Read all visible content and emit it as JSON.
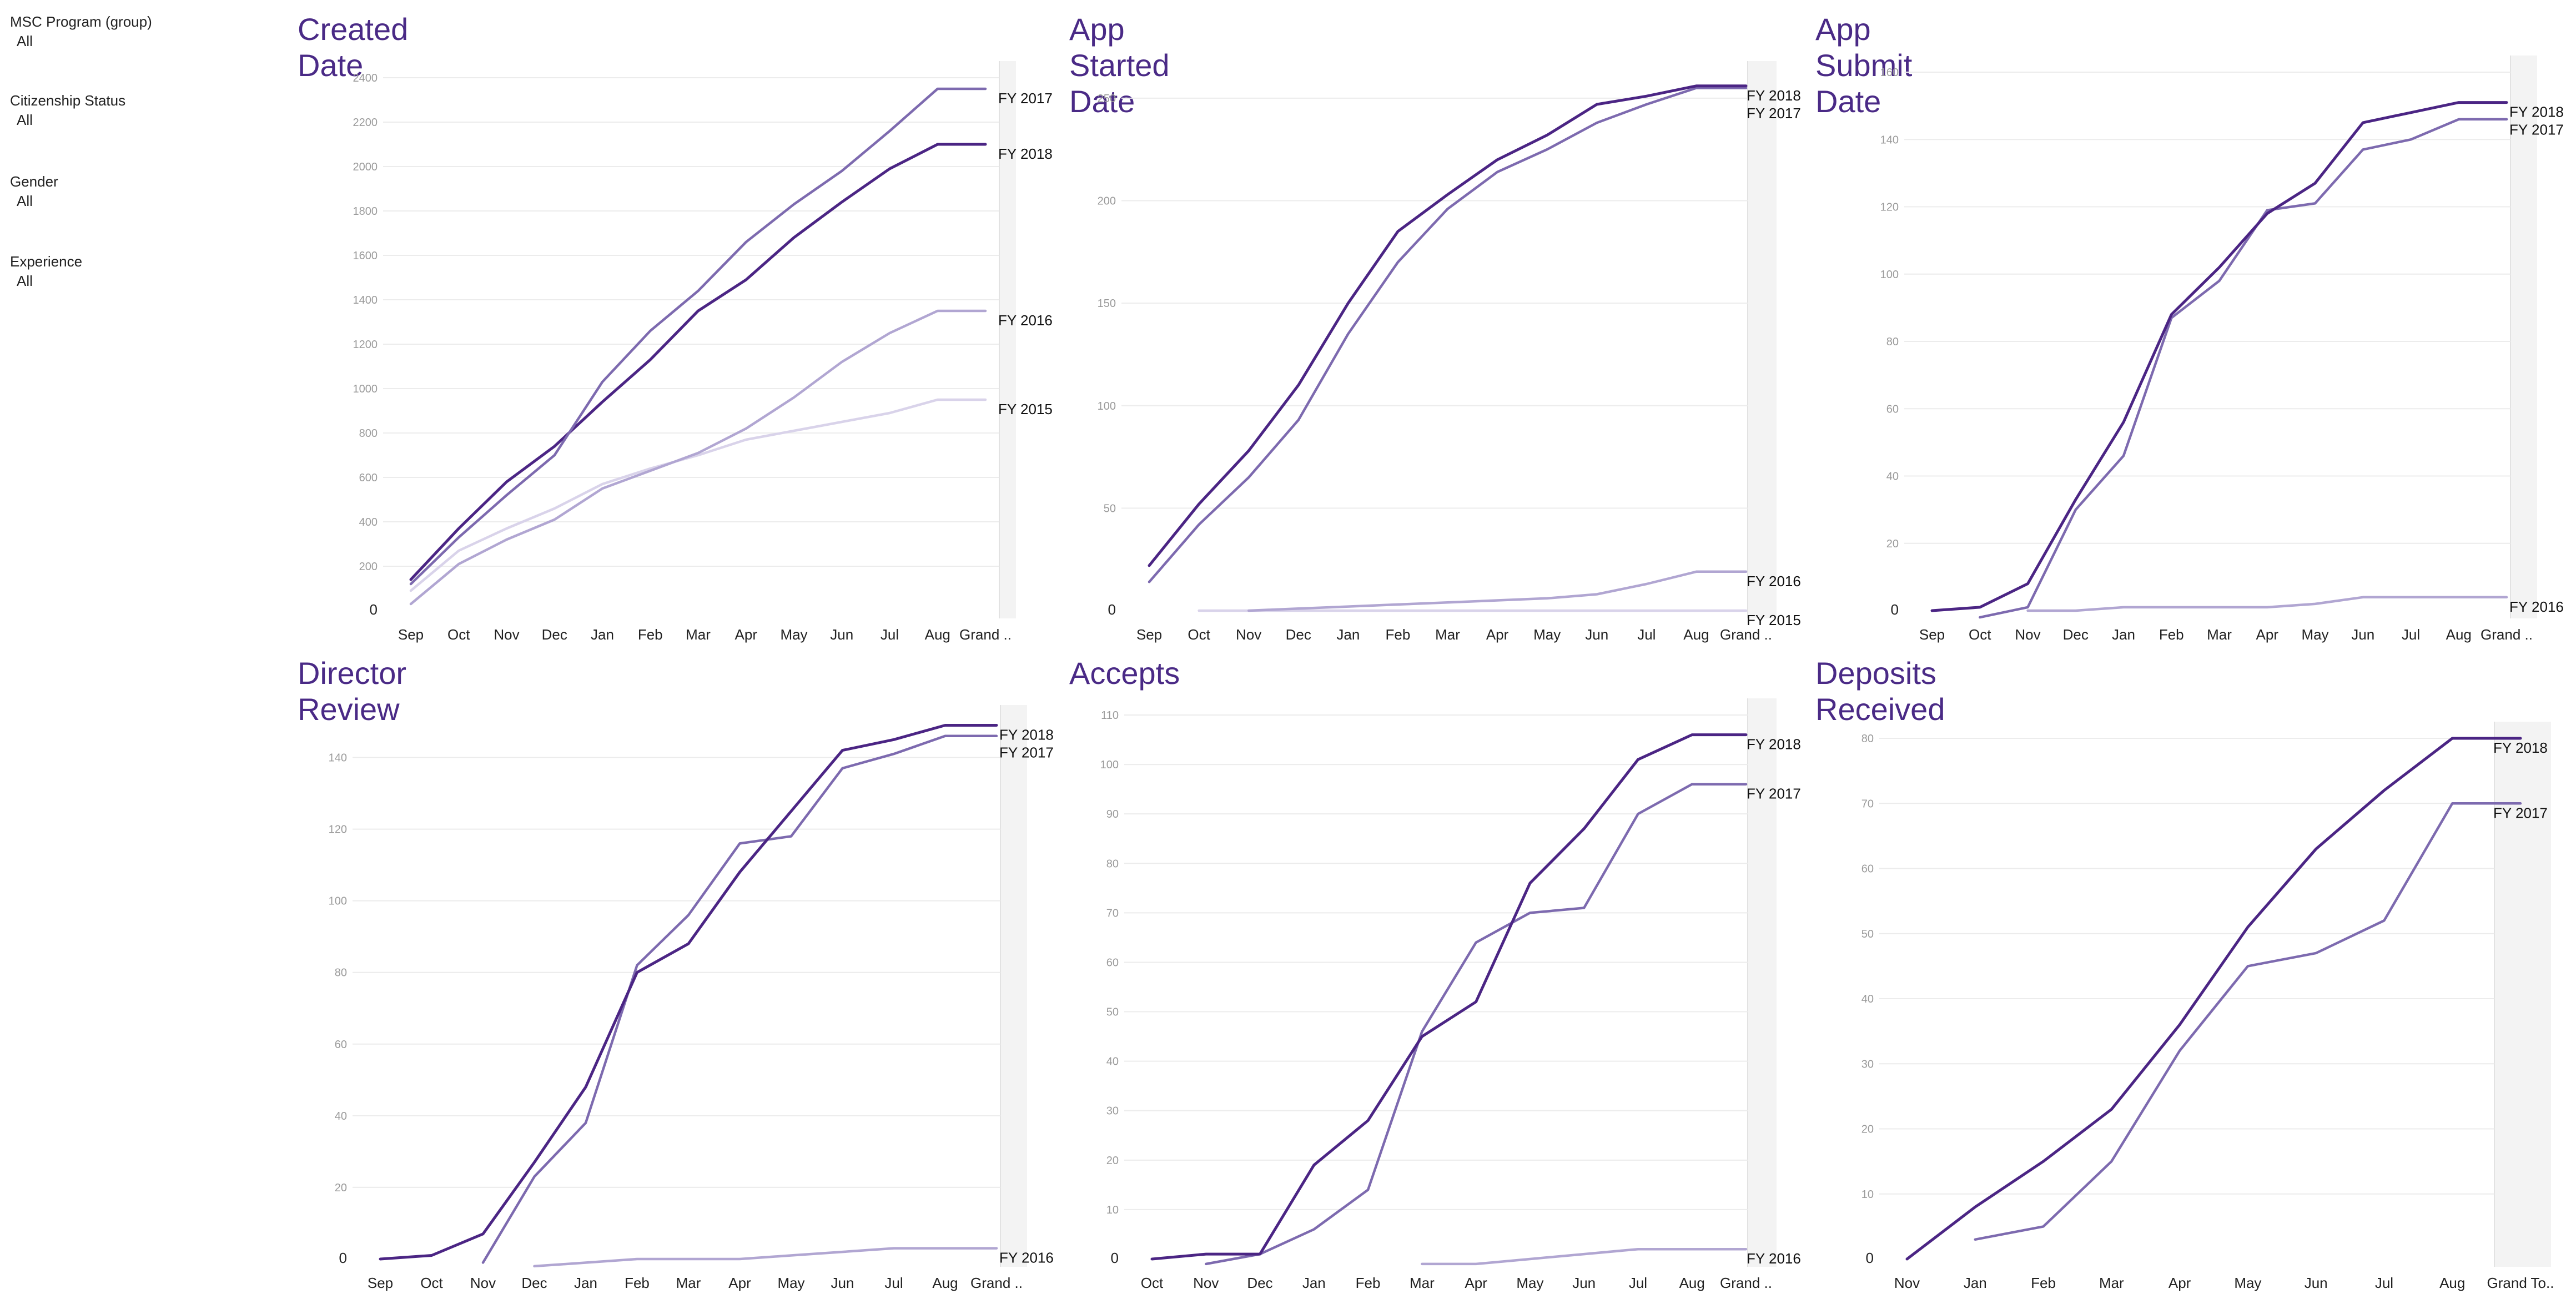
{
  "filters": [
    {
      "label": "MSC Program (group)",
      "value": "All"
    },
    {
      "label": "Citizenship Status",
      "value": "All"
    },
    {
      "label": "Gender",
      "value": "All"
    },
    {
      "label": "Experience",
      "value": "All"
    }
  ],
  "colors": {
    "title": "#4a2a86",
    "FY 2018": "#4b2584",
    "FY 2017": "#7d6aaf",
    "FY 2016": "#b1a6d2",
    "FY 2015": "#d9d3ea",
    "grand_band": "#f3f3f3",
    "grid": "#ececec"
  },
  "chart_data": [
    {
      "type": "line",
      "title": "Created Date",
      "categories": [
        "Sep",
        "Oct",
        "Nov",
        "Dec",
        "Jan",
        "Feb",
        "Mar",
        "Apr",
        "May",
        "Jun",
        "Jul",
        "Aug",
        "Grand .."
      ],
      "ylim": [
        0,
        2400
      ],
      "yticks": [
        0,
        200,
        400,
        600,
        800,
        1000,
        1200,
        1400,
        1600,
        1800,
        2000,
        2200,
        2400
      ],
      "series": [
        {
          "name": "FY 2017",
          "values": [
            120,
            330,
            520,
            700,
            1030,
            1260,
            1440,
            1660,
            1830,
            1980,
            2160,
            2350,
            2350
          ]
        },
        {
          "name": "FY 2018",
          "values": [
            140,
            370,
            580,
            740,
            940,
            1130,
            1350,
            1490,
            1680,
            1840,
            1990,
            2100,
            2100
          ]
        },
        {
          "name": "FY 2016",
          "values": [
            30,
            210,
            320,
            410,
            550,
            630,
            710,
            820,
            960,
            1120,
            1250,
            1350,
            1350
          ]
        },
        {
          "name": "FY 2015",
          "values": [
            90,
            270,
            370,
            460,
            570,
            640,
            700,
            770,
            810,
            850,
            890,
            950,
            950
          ]
        }
      ],
      "labels_order": [
        "FY 2017",
        "FY 2018",
        "FY 2016",
        "FY 2015"
      ]
    },
    {
      "type": "line",
      "title": "App Started Date",
      "categories": [
        "Sep",
        "Oct",
        "Nov",
        "Dec",
        "Jan",
        "Feb",
        "Mar",
        "Apr",
        "May",
        "Jun",
        "Jul",
        "Aug",
        "Grand .."
      ],
      "ylim": [
        0,
        260
      ],
      "yticks": [
        0,
        50,
        100,
        150,
        200,
        250
      ],
      "series": [
        {
          "name": "FY 2018",
          "values": [
            22,
            52,
            78,
            110,
            150,
            185,
            203,
            220,
            232,
            247,
            251,
            256,
            256
          ]
        },
        {
          "name": "FY 2017",
          "values": [
            14,
            42,
            65,
            93,
            135,
            170,
            196,
            214,
            225,
            238,
            247,
            255,
            255
          ]
        },
        {
          "name": "FY 2016",
          "values": [
            null,
            null,
            0,
            1,
            2,
            3,
            4,
            5,
            6,
            8,
            13,
            19,
            19
          ]
        },
        {
          "name": "FY 2015",
          "values": [
            null,
            0,
            0,
            0,
            0,
            0,
            0,
            0,
            0,
            0,
            0,
            0,
            0
          ]
        }
      ],
      "labels_order": [
        "FY 2018",
        "FY 2017",
        "FY 2016",
        "FY 2015"
      ]
    },
    {
      "type": "line",
      "title": "App Submit Date",
      "categories": [
        "Sep",
        "Oct",
        "Nov",
        "Dec",
        "Jan",
        "Feb",
        "Mar",
        "Apr",
        "May",
        "Jun",
        "Jul",
        "Aug",
        "Grand .."
      ],
      "ylim": [
        0,
        160
      ],
      "yticks": [
        0,
        20,
        40,
        60,
        80,
        100,
        120,
        140,
        160
      ],
      "series": [
        {
          "name": "FY 2018",
          "values": [
            0,
            1,
            8,
            33,
            56,
            88,
            102,
            118,
            127,
            145,
            148,
            151,
            151
          ]
        },
        {
          "name": "FY 2017",
          "values": [
            null,
            -2,
            1,
            30,
            46,
            87,
            98,
            119,
            121,
            137,
            140,
            146,
            146
          ]
        },
        {
          "name": "FY 2016",
          "values": [
            null,
            null,
            0,
            0,
            1,
            1,
            1,
            1,
            2,
            4,
            4,
            4,
            4
          ]
        }
      ],
      "labels_order": [
        "FY 2018",
        "FY 2017",
        "FY 2016"
      ]
    },
    {
      "type": "line",
      "title": "Director Review",
      "categories": [
        "Sep",
        "Oct",
        "Nov",
        "Dec",
        "Jan",
        "Feb",
        "Mar",
        "Apr",
        "May",
        "Jun",
        "Jul",
        "Aug",
        "Grand .."
      ],
      "ylim": [
        0,
        150
      ],
      "yticks": [
        0,
        20,
        40,
        60,
        80,
        100,
        120,
        140
      ],
      "series": [
        {
          "name": "FY 2018",
          "values": [
            0,
            1,
            7,
            27,
            48,
            80,
            88,
            108,
            125,
            142,
            145,
            149,
            149
          ]
        },
        {
          "name": "FY 2017",
          "values": [
            null,
            null,
            -1,
            23,
            38,
            82,
            96,
            116,
            118,
            137,
            141,
            146,
            146
          ]
        },
        {
          "name": "FY 2016",
          "values": [
            null,
            null,
            null,
            -2,
            -1,
            0,
            0,
            0,
            1,
            2,
            3,
            3,
            3
          ]
        }
      ],
      "labels_order": [
        "FY 2018",
        "FY 2017",
        "FY 2016"
      ]
    },
    {
      "type": "line",
      "title": "Accepts",
      "categories": [
        "Oct",
        "Nov",
        "Dec",
        "Jan",
        "Feb",
        "Mar",
        "Apr",
        "May",
        "Jun",
        "Jul",
        "Aug",
        "Grand .."
      ],
      "ylim": [
        0,
        110
      ],
      "yticks": [
        0,
        10,
        20,
        30,
        40,
        50,
        60,
        70,
        80,
        90,
        100,
        110
      ],
      "series": [
        {
          "name": "FY 2018",
          "values": [
            0,
            1,
            1,
            19,
            28,
            45,
            52,
            76,
            87,
            101,
            106,
            106
          ]
        },
        {
          "name": "FY 2017",
          "values": [
            null,
            -1,
            1,
            6,
            14,
            46,
            64,
            70,
            71,
            90,
            96,
            96
          ]
        },
        {
          "name": "FY 2016",
          "values": [
            null,
            null,
            null,
            null,
            null,
            -1,
            -1,
            0,
            1,
            2,
            2,
            2
          ]
        }
      ],
      "labels_order": [
        "FY 2018",
        "FY 2017",
        "FY 2016"
      ]
    },
    {
      "type": "line",
      "title": "Deposits Received",
      "categories": [
        "Nov",
        "Jan",
        "Feb",
        "Mar",
        "Apr",
        "May",
        "Jun",
        "Jul",
        "Aug",
        "Grand To.."
      ],
      "ylim": [
        0,
        80
      ],
      "yticks": [
        0,
        10,
        20,
        30,
        40,
        50,
        60,
        70,
        80
      ],
      "series": [
        {
          "name": "FY 2018",
          "values": [
            0,
            8,
            15,
            23,
            36,
            51,
            63,
            72,
            80,
            80
          ]
        },
        {
          "name": "FY 2017",
          "values": [
            null,
            3,
            5,
            15,
            32,
            45,
            47,
            52,
            70,
            70
          ]
        }
      ],
      "labels_order": [
        "FY 2018",
        "FY 2017"
      ]
    }
  ]
}
